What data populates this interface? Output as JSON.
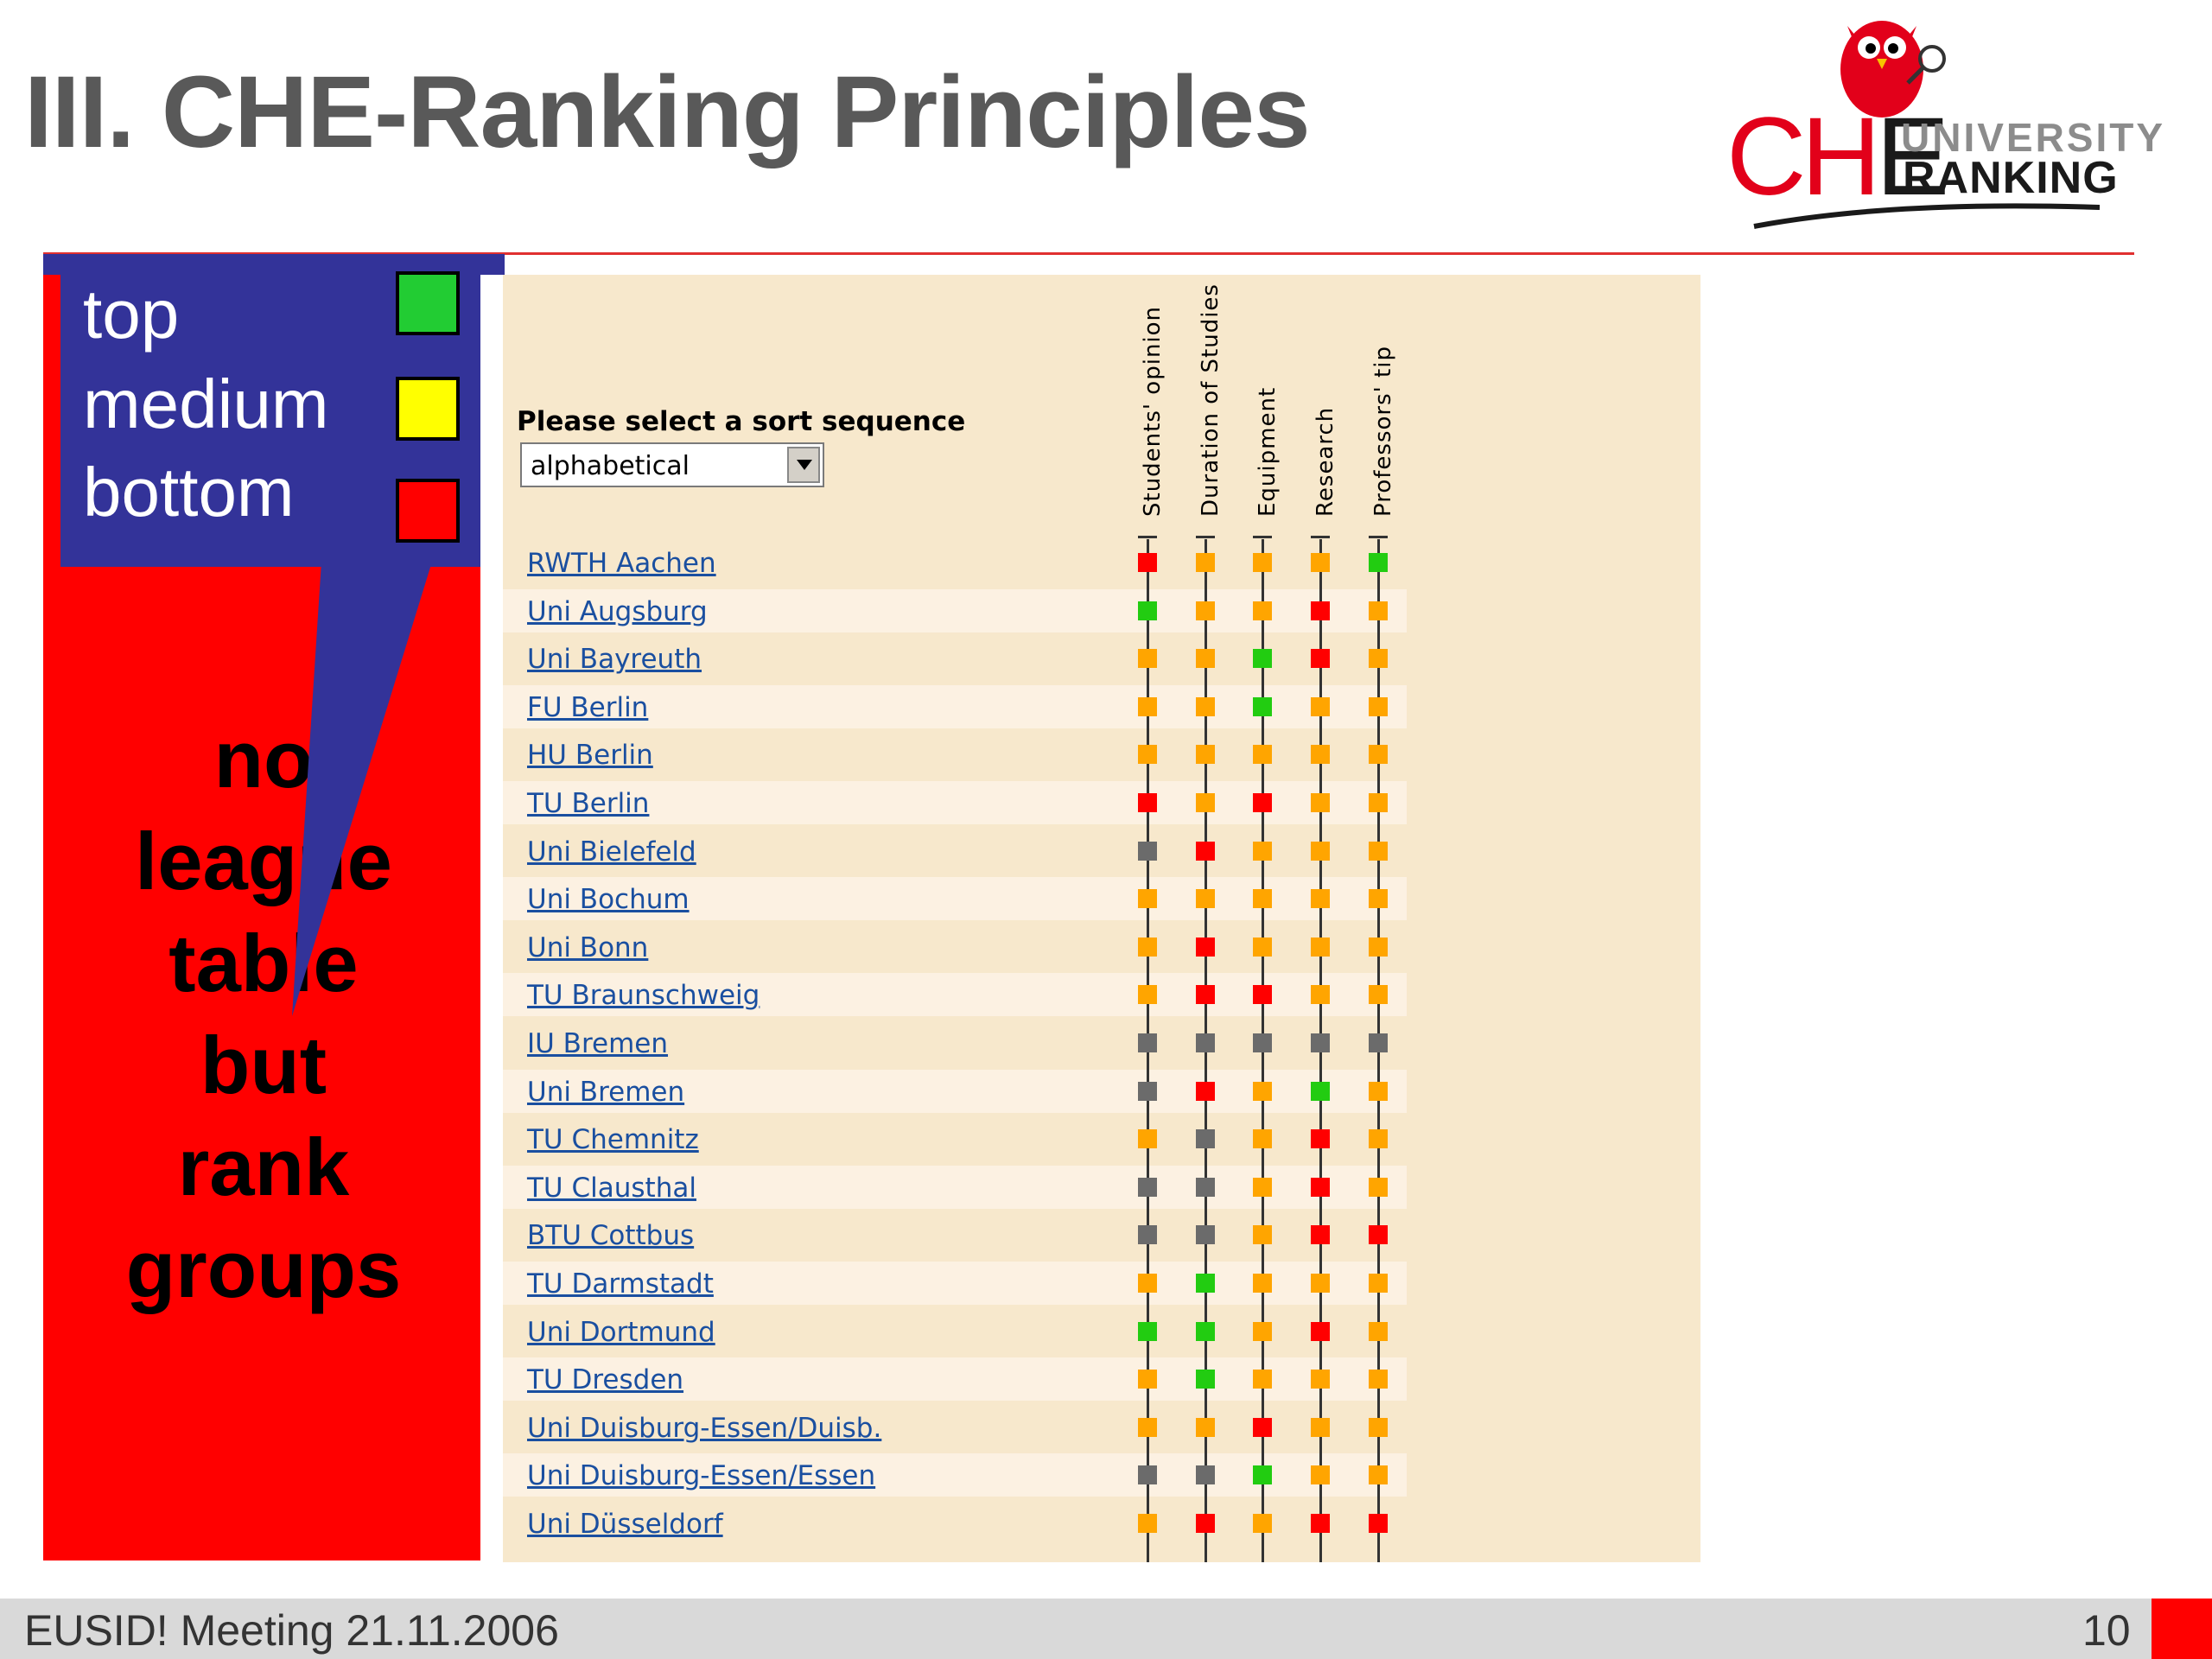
{
  "slide": {
    "title": "III. CHE-Ranking Principles",
    "footer_left": "EUSID! Meeting 21.11.2006",
    "page_number": "10"
  },
  "logo": {
    "che_c": "C",
    "che_h": "H",
    "che_e": "E",
    "line1": "UNIVERSITY",
    "line2": "RANKING"
  },
  "legend": {
    "items": [
      {
        "label": "top",
        "color": "#22cc33"
      },
      {
        "label": "medium",
        "color": "#ffff00"
      },
      {
        "label": "bottom",
        "color": "#ff0000"
      }
    ]
  },
  "side_note": {
    "lines": [
      "no",
      "league",
      "table",
      "but",
      "rank",
      "groups"
    ]
  },
  "ranking_table": {
    "sort_label": "Please select a sort sequence",
    "sort_value": "alphabetical",
    "columns": [
      "Students' opinion",
      "Duration of Studies",
      "Equipment",
      "Research",
      "Professors' tip"
    ],
    "marker_colors": {
      "g": "#22cc11",
      "o": "#ffa500",
      "r": "#ff0000",
      "x": "#6b6b6b"
    },
    "rows": [
      {
        "name": "RWTH Aachen",
        "marks": [
          "r",
          "o",
          "o",
          "o",
          "g"
        ]
      },
      {
        "name": "Uni Augsburg",
        "marks": [
          "g",
          "o",
          "o",
          "r",
          "o"
        ]
      },
      {
        "name": "Uni Bayreuth",
        "marks": [
          "o",
          "o",
          "g",
          "r",
          "o"
        ]
      },
      {
        "name": "FU Berlin",
        "marks": [
          "o",
          "o",
          "g",
          "o",
          "o"
        ]
      },
      {
        "name": "HU Berlin",
        "marks": [
          "o",
          "o",
          "o",
          "o",
          "o"
        ]
      },
      {
        "name": "TU Berlin",
        "marks": [
          "r",
          "o",
          "r",
          "o",
          "o"
        ]
      },
      {
        "name": "Uni Bielefeld",
        "marks": [
          "x",
          "r",
          "o",
          "o",
          "o"
        ]
      },
      {
        "name": "Uni Bochum",
        "marks": [
          "o",
          "o",
          "o",
          "o",
          "o"
        ]
      },
      {
        "name": "Uni Bonn",
        "marks": [
          "o",
          "r",
          "o",
          "o",
          "o"
        ]
      },
      {
        "name": "TU Braunschweig",
        "marks": [
          "o",
          "r",
          "r",
          "o",
          "o"
        ]
      },
      {
        "name": "IU Bremen",
        "marks": [
          "x",
          "x",
          "x",
          "x",
          "x"
        ]
      },
      {
        "name": "Uni Bremen",
        "marks": [
          "x",
          "r",
          "o",
          "g",
          "o"
        ]
      },
      {
        "name": "TU Chemnitz",
        "marks": [
          "o",
          "x",
          "o",
          "r",
          "o"
        ]
      },
      {
        "name": "TU Clausthal",
        "marks": [
          "x",
          "x",
          "o",
          "r",
          "o"
        ]
      },
      {
        "name": "BTU Cottbus",
        "marks": [
          "x",
          "x",
          "o",
          "r",
          "r"
        ]
      },
      {
        "name": "TU Darmstadt",
        "marks": [
          "o",
          "g",
          "o",
          "o",
          "o"
        ]
      },
      {
        "name": "Uni Dortmund",
        "marks": [
          "g",
          "g",
          "o",
          "r",
          "o"
        ]
      },
      {
        "name": "TU Dresden",
        "marks": [
          "o",
          "g",
          "o",
          "o",
          "o"
        ]
      },
      {
        "name": "Uni Duisburg-Essen/Duisb.",
        "marks": [
          "o",
          "o",
          "r",
          "o",
          "o"
        ]
      },
      {
        "name": "Uni Duisburg-Essen/Essen",
        "marks": [
          "x",
          "x",
          "g",
          "o",
          "o"
        ]
      },
      {
        "name": "Uni Düsseldorf",
        "marks": [
          "o",
          "r",
          "o",
          "r",
          "r"
        ]
      }
    ]
  }
}
